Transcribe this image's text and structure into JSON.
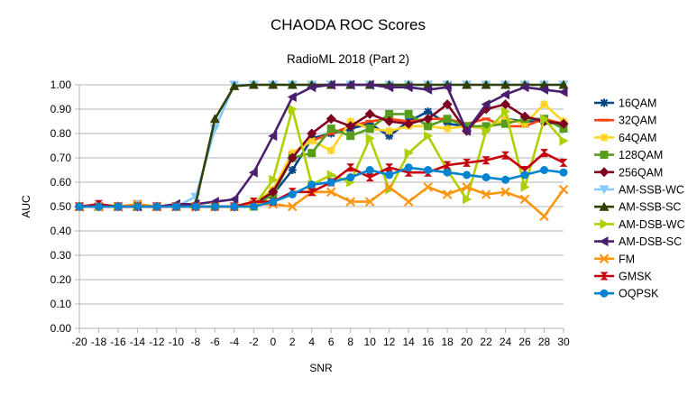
{
  "chart_data": {
    "type": "line",
    "title": "CHAODA ROC Scores",
    "subtitle": "RadioML 2018 (Part 2)",
    "xlabel": "SNR",
    "ylabel": "AUC",
    "x": [
      -20,
      -18,
      -16,
      -14,
      -12,
      -10,
      -8,
      -6,
      -4,
      -2,
      0,
      2,
      4,
      6,
      8,
      10,
      12,
      14,
      16,
      18,
      20,
      22,
      24,
      26,
      28,
      30
    ],
    "x_tick_labels": [
      "-20",
      "-18",
      "-16",
      "-14",
      "-12",
      "-10",
      "-8",
      "-6",
      "-4",
      "-2",
      "0",
      "2",
      "4",
      "6",
      "8",
      "10",
      "12",
      "14",
      "16",
      "18",
      "20",
      "22",
      "24",
      "26",
      "28",
      "30"
    ],
    "ylim": [
      0,
      1
    ],
    "y_tick_labels": [
      "0.00",
      "0.10",
      "0.20",
      "0.30",
      "0.40",
      "0.50",
      "0.60",
      "0.70",
      "0.80",
      "0.90",
      "1.00"
    ],
    "grid": "horizontal",
    "legend_position": "right",
    "series": [
      {
        "name": "16QAM",
        "color": "#004586",
        "marker": "star",
        "values": [
          0.5,
          0.5,
          0.5,
          0.5,
          0.5,
          0.5,
          0.5,
          0.5,
          0.5,
          0.51,
          0.55,
          0.65,
          0.78,
          0.8,
          0.82,
          0.84,
          0.79,
          0.85,
          0.89,
          0.84,
          0.83,
          0.82,
          0.86,
          0.85,
          0.85,
          0.83
        ]
      },
      {
        "name": "32QAM",
        "color": "#ff420e",
        "marker": "dash",
        "values": [
          0.5,
          0.5,
          0.5,
          0.5,
          0.5,
          0.5,
          0.5,
          0.5,
          0.5,
          0.51,
          0.57,
          0.72,
          0.77,
          0.8,
          0.83,
          0.85,
          0.86,
          0.85,
          0.86,
          0.86,
          0.84,
          0.86,
          0.83,
          0.83,
          0.86,
          0.84
        ]
      },
      {
        "name": "64QAM",
        "color": "#ffd320",
        "marker": "star",
        "values": [
          0.5,
          0.5,
          0.5,
          0.5,
          0.5,
          0.5,
          0.5,
          0.5,
          0.5,
          0.51,
          0.57,
          0.72,
          0.77,
          0.73,
          0.85,
          0.82,
          0.81,
          0.83,
          0.83,
          0.82,
          0.83,
          0.82,
          0.86,
          0.84,
          0.92,
          0.85
        ]
      },
      {
        "name": "128QAM",
        "color": "#579d1c",
        "marker": "square",
        "values": [
          0.5,
          0.5,
          0.5,
          0.5,
          0.5,
          0.5,
          0.5,
          0.5,
          0.5,
          0.5,
          0.55,
          0.7,
          0.72,
          0.82,
          0.79,
          0.82,
          0.88,
          0.88,
          0.83,
          0.86,
          0.83,
          0.83,
          0.84,
          0.86,
          0.86,
          0.82
        ]
      },
      {
        "name": "256QAM",
        "color": "#7e0021",
        "marker": "diamond",
        "values": [
          0.5,
          0.5,
          0.5,
          0.5,
          0.5,
          0.5,
          0.5,
          0.5,
          0.5,
          0.51,
          0.56,
          0.7,
          0.8,
          0.86,
          0.83,
          0.88,
          0.85,
          0.84,
          0.86,
          0.92,
          0.81,
          0.9,
          0.92,
          0.87,
          0.85,
          0.84
        ]
      },
      {
        "name": "AM-SSB-WC",
        "color": "#83caff",
        "marker": "tri-down",
        "values": [
          0.5,
          0.5,
          0.5,
          0.51,
          0.5,
          0.5,
          0.54,
          0.82,
          1.0,
          1.0,
          1.0,
          1.0,
          1.0,
          1.0,
          1.0,
          1.0,
          1.0,
          1.0,
          1.0,
          1.0,
          1.0,
          1.0,
          1.0,
          1.0,
          1.0,
          1.0
        ]
      },
      {
        "name": "AM-SSB-SC",
        "color": "#314004",
        "marker": "tri-up",
        "values": [
          0.5,
          0.5,
          0.5,
          0.5,
          0.5,
          0.5,
          0.51,
          0.86,
          0.995,
          1.0,
          1.0,
          1.0,
          1.0,
          1.0,
          1.0,
          1.0,
          1.0,
          1.0,
          1.0,
          1.0,
          1.0,
          1.0,
          1.0,
          1.0,
          1.0,
          1.0
        ]
      },
      {
        "name": "AM-DSB-WC",
        "color": "#aecf00",
        "marker": "tri-right",
        "values": [
          0.5,
          0.5,
          0.5,
          0.5,
          0.5,
          0.5,
          0.5,
          0.5,
          0.5,
          0.5,
          0.61,
          0.9,
          0.59,
          0.63,
          0.6,
          0.78,
          0.57,
          0.72,
          0.79,
          0.65,
          0.53,
          0.81,
          0.89,
          0.58,
          0.86,
          0.77
        ]
      },
      {
        "name": "AM-DSB-SC",
        "color": "#4b1f6f",
        "marker": "tri-left",
        "values": [
          0.5,
          0.5,
          0.5,
          0.5,
          0.5,
          0.51,
          0.51,
          0.52,
          0.53,
          0.64,
          0.79,
          0.95,
          0.99,
          1.0,
          1.0,
          1.0,
          0.99,
          0.99,
          0.98,
          0.99,
          0.81,
          0.92,
          0.96,
          0.99,
          0.98,
          0.97
        ]
      },
      {
        "name": "FM",
        "color": "#ff950e",
        "marker": "x",
        "values": [
          0.5,
          0.5,
          0.5,
          0.51,
          0.5,
          0.5,
          0.5,
          0.5,
          0.5,
          0.51,
          0.51,
          0.5,
          0.56,
          0.56,
          0.52,
          0.52,
          0.58,
          0.52,
          0.58,
          0.55,
          0.58,
          0.55,
          0.56,
          0.53,
          0.46,
          0.57
        ]
      },
      {
        "name": "GMSK",
        "color": "#c5000b",
        "marker": "hourglass",
        "values": [
          0.5,
          0.51,
          0.5,
          0.5,
          0.5,
          0.5,
          0.5,
          0.5,
          0.5,
          0.52,
          0.52,
          0.56,
          0.56,
          0.6,
          0.66,
          0.62,
          0.66,
          0.64,
          0.64,
          0.67,
          0.68,
          0.69,
          0.71,
          0.65,
          0.72,
          0.68
        ]
      },
      {
        "name": "OQPSK",
        "color": "#0084d1",
        "marker": "circle",
        "values": [
          0.5,
          0.5,
          0.5,
          0.5,
          0.5,
          0.5,
          0.5,
          0.5,
          0.5,
          0.5,
          0.52,
          0.55,
          0.59,
          0.6,
          0.62,
          0.65,
          0.63,
          0.66,
          0.65,
          0.64,
          0.63,
          0.62,
          0.61,
          0.63,
          0.65,
          0.64
        ]
      }
    ]
  }
}
